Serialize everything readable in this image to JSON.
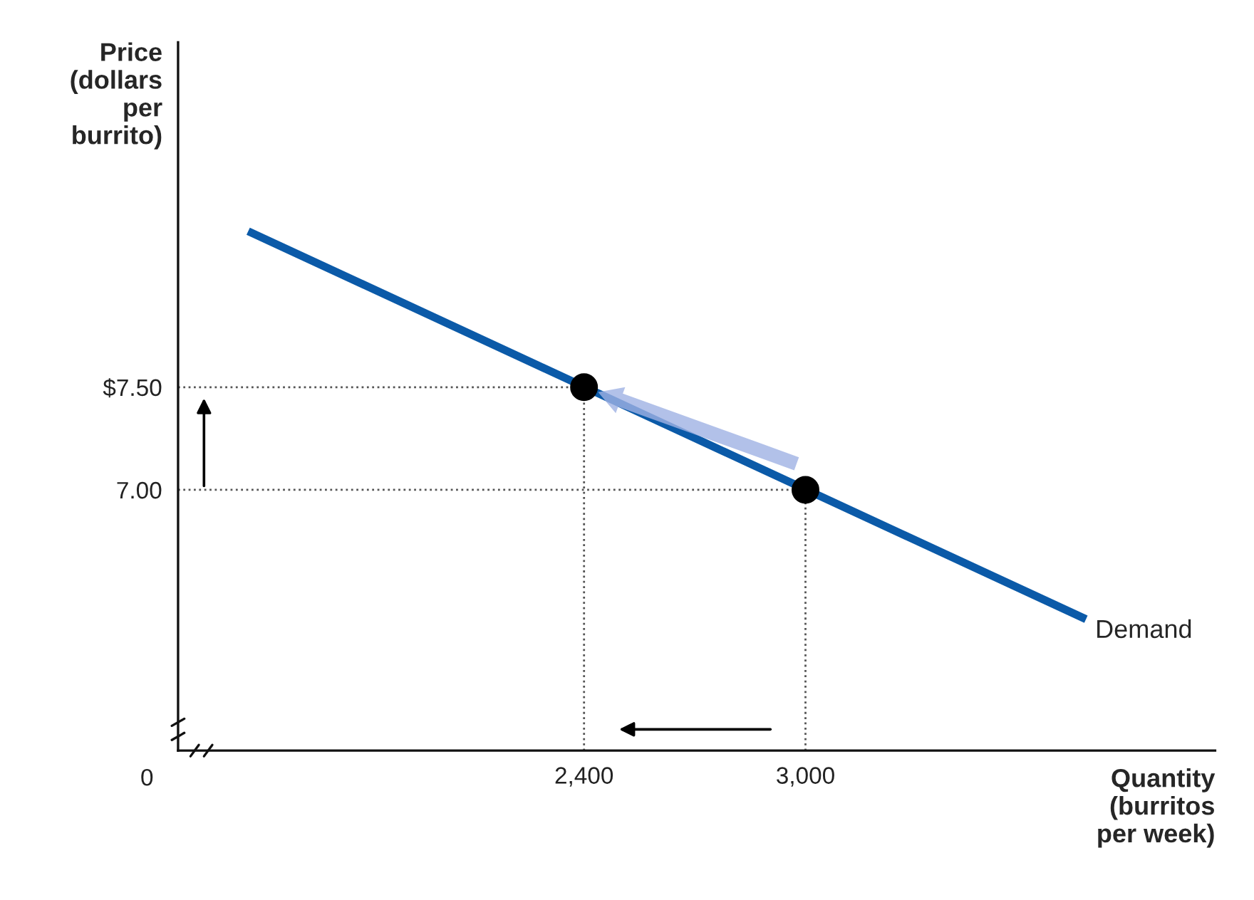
{
  "chart_data": {
    "type": "line",
    "xlabel": "Quantity\n(burritos\nper week)",
    "ylabel": "Price\n(dollars\nper\nburrito)",
    "xlim": [
      1300,
      4110
    ],
    "ylim": [
      5.73,
      9.18
    ],
    "xticks": [
      {
        "value": 2400,
        "label": "2,400"
      },
      {
        "value": 3000,
        "label": "3,000"
      }
    ],
    "yticks": [
      {
        "value": 7.5,
        "label": "$7.50"
      },
      {
        "value": 7.0,
        "label": "7.00"
      }
    ],
    "grid": false,
    "annotations": [
      "0"
    ],
    "series": [
      {
        "name": "Demand",
        "color": "#0b5aa8",
        "x": [
          1490,
          3760
        ],
        "values": [
          8.26,
          6.37
        ]
      },
      {
        "type": "scatter",
        "color": "#000000",
        "marker": "circle",
        "x": [
          2400,
          3000
        ],
        "values": [
          7.5,
          7.0
        ]
      }
    ],
    "ref_lines": [
      {
        "axis": "y",
        "value": 7.5,
        "color": "#555555",
        "line_style": "dotted"
      },
      {
        "axis": "y",
        "value": 7.0,
        "color": "#555555",
        "line_style": "dotted"
      },
      {
        "axis": "x",
        "value": 2400,
        "color": "#555555",
        "line_style": "dotted"
      },
      {
        "axis": "x",
        "value": 3000,
        "color": "#555555",
        "line_style": "dotted"
      }
    ]
  }
}
